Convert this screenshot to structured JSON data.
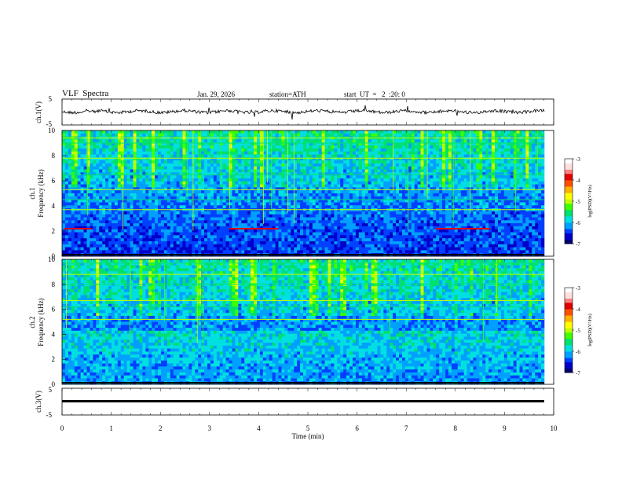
{
  "header": {
    "title": "VLF  Spectra",
    "date": "Jan. 29, 2026",
    "station": "station=ATH",
    "start": "start  UT  =   2  :20: 0"
  },
  "chart_data": [
    {
      "type": "line",
      "name": "ch1-waveform",
      "ylabel": "ch.1(V)",
      "ylim": [
        -5,
        5
      ],
      "y_ticks": [
        "5",
        "-5"
      ],
      "xlim": [
        0,
        10
      ]
    },
    {
      "type": "heatmap",
      "name": "ch1-spectrogram",
      "ylabel": "ch.1\nFrequency  (kHz)",
      "ylim": [
        0,
        10
      ],
      "y_ticks": [
        "0",
        "2",
        "4",
        "6",
        "8",
        "10"
      ],
      "xlim": [
        0,
        10
      ],
      "colorbar": {
        "label": "log(PSD)(V²/Hz)",
        "range": [
          -7,
          -3
        ],
        "ticks": [
          "-3",
          "-4",
          "-5",
          "-6",
          "-7"
        ]
      }
    },
    {
      "type": "heatmap",
      "name": "ch2-spectrogram",
      "ylabel": "ch.2\nFrequency  (kHz)",
      "ylim": [
        0,
        10
      ],
      "y_ticks": [
        "0",
        "2",
        "4",
        "6",
        "8",
        "10"
      ],
      "xlim": [
        0,
        10
      ],
      "colorbar": {
        "label": "log(PSD)(V²/Hz)",
        "range": [
          -7,
          -3
        ],
        "ticks": [
          "-3",
          "-4",
          "-5",
          "-6",
          "-7"
        ]
      }
    },
    {
      "type": "line",
      "name": "ch3-waveform",
      "ylabel": "ch.3(V)",
      "ylim": [
        -5,
        5
      ],
      "y_ticks": [
        "5",
        "-5"
      ],
      "xlim": [
        0,
        10
      ],
      "xlabel": "Time  (min)",
      "x_ticks": [
        "0",
        "1",
        "2",
        "3",
        "4",
        "5",
        "6",
        "7",
        "8",
        "9",
        "10"
      ]
    }
  ],
  "colors": {
    "colormap": [
      "#000000",
      "#000070",
      "#0000c8",
      "#0040ff",
      "#00a0ff",
      "#00e0e0",
      "#00e070",
      "#40ff00",
      "#c0ff00",
      "#ffff00",
      "#ffb000",
      "#ff5000",
      "#e00000",
      "#ff8080",
      "#ffe0e0",
      "#ffffff"
    ],
    "waveform": "#000000"
  }
}
